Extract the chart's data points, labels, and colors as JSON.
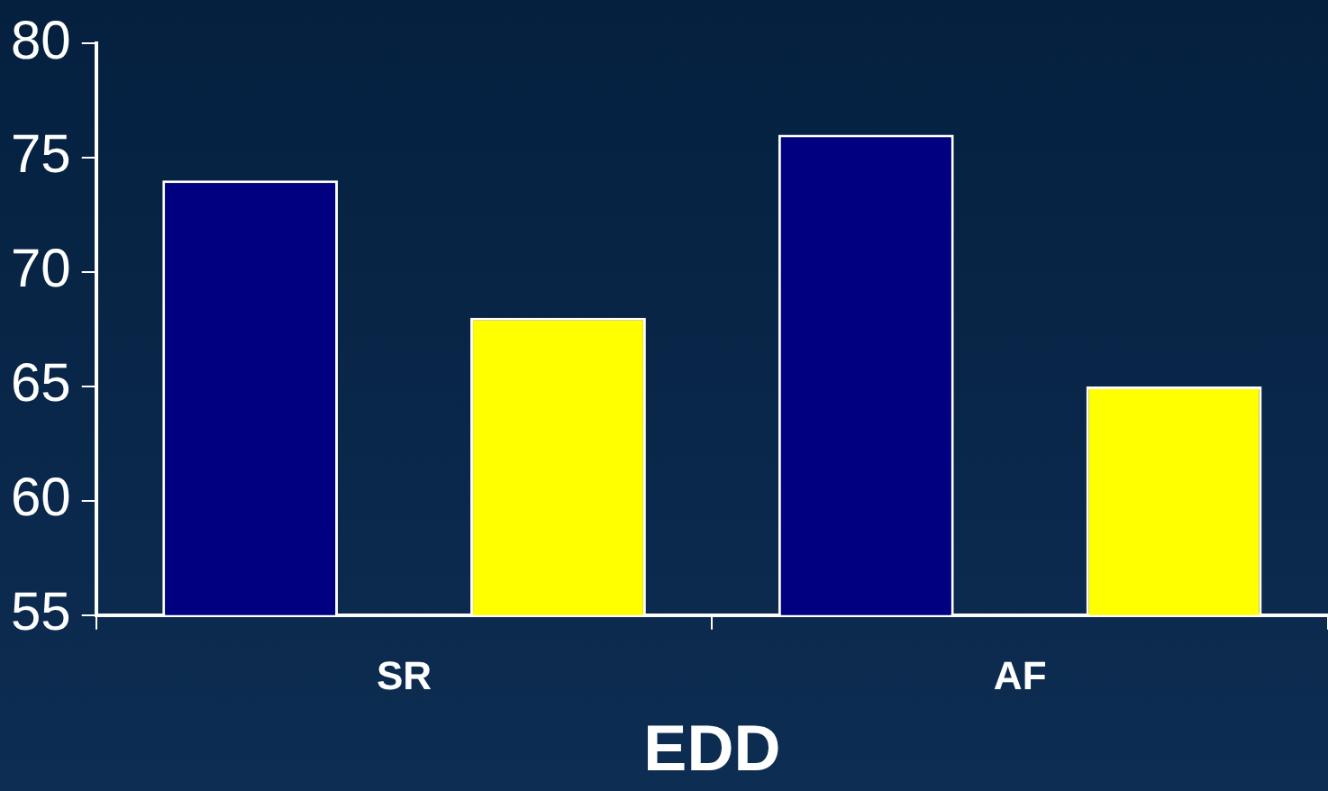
{
  "chart_data": {
    "type": "bar",
    "xlabel": "EDD",
    "categories": [
      "SR",
      "AF"
    ],
    "series": [
      {
        "color": "#000080",
        "values": [
          74,
          76
        ]
      },
      {
        "color": "#ffff00",
        "values": [
          68,
          65
        ]
      }
    ],
    "ylim": [
      55,
      80
    ],
    "yticks": [
      55,
      60,
      65,
      70,
      75,
      80
    ],
    "grid": false,
    "legend": false
  }
}
